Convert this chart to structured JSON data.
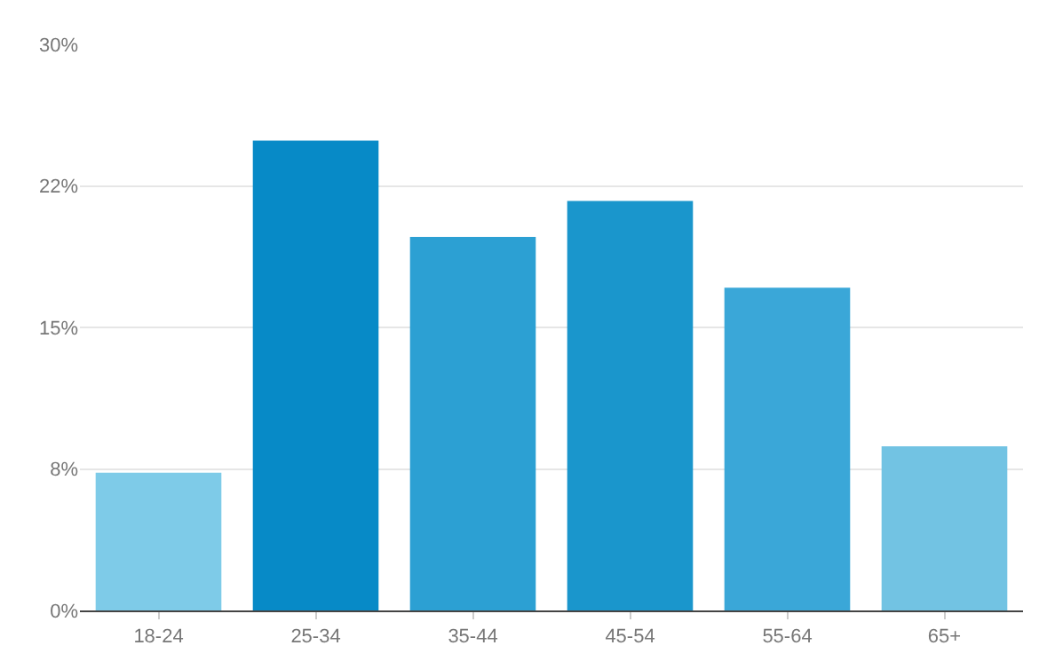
{
  "chart_data": {
    "type": "bar",
    "categories": [
      "18-24",
      "25-34",
      "35-44",
      "45-54",
      "55-64",
      "65+"
    ],
    "values": [
      7.3,
      24.9,
      19.8,
      21.7,
      17.1,
      8.7
    ],
    "colors": [
      "#7ecbe8",
      "#078ac7",
      "#2ca0d3",
      "#1a96cc",
      "#3aa7d8",
      "#72c3e3"
    ],
    "ylim": [
      0,
      30
    ],
    "yticks": [
      {
        "value": 0,
        "label": "0%"
      },
      {
        "value": 7.5,
        "label": "8%"
      },
      {
        "value": 15,
        "label": "15%"
      },
      {
        "value": 22.5,
        "label": "22%"
      },
      {
        "value": 30,
        "label": "30%"
      }
    ],
    "grid": "y"
  }
}
